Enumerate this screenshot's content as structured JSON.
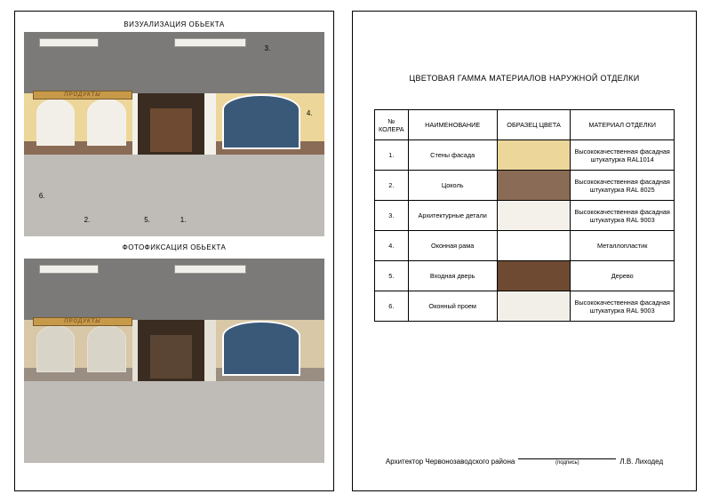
{
  "left": {
    "viz_title": "ВИЗУАЛИЗАЦИЯ ОБЬЕКТА",
    "photo_title": "ФОТОФИКСАЦИЯ ОБЬЕКТА",
    "sign_text": "ПРОДУКТЫ",
    "callouts": [
      "1.",
      "2.",
      "3.",
      "4.",
      "5.",
      "6."
    ],
    "viz_colors": {
      "facade": "#ecd699",
      "plinth": "#8a6b55",
      "details": "#f4f1eb",
      "window_frame": "#ffffff",
      "door": "#6e4a33",
      "opening": "#f2efe9",
      "sign_bg": "#c79a4a",
      "sign_text": "#6b3f1a"
    },
    "photo_colors": {
      "facade": "#d8c8a8",
      "plinth": "#9a8e82",
      "details": "#e6e1d6",
      "door": "#5a4434",
      "opening": "#d9d4c8"
    }
  },
  "right": {
    "title": "ЦВЕТОВАЯ ГАММА МАТЕРИАЛОВ НАРУЖНОЙ ОТДЕЛКИ",
    "headers": {
      "num": "№ КОЛЕРА",
      "name": "НАИМЕНОВАНИЕ",
      "swatch": "ОБРАЗЕЦ ЦВЕТА",
      "material": "МАТЕРИАЛ ОТДЕЛКИ"
    },
    "rows": [
      {
        "num": "1.",
        "name": "Стены фасада",
        "color": "#ecd699",
        "material": "Высококачественная фасадная штукатурка RAL1014"
      },
      {
        "num": "2.",
        "name": "Цоколь",
        "color": "#8a6b55",
        "material": "Высококачественная фасадная штукатурка RAL 8025"
      },
      {
        "num": "3.",
        "name": "Архитектурные детали",
        "color": "#f4f1eb",
        "material": "Высококачественная фасадная штукатурка RAL 9003"
      },
      {
        "num": "4.",
        "name": "Оконная рама",
        "color": "#ffffff",
        "material": "Металлопластик"
      },
      {
        "num": "5.",
        "name": "Входная дверь",
        "color": "#6e4a33",
        "material": "Дерево"
      },
      {
        "num": "6.",
        "name": "Оконный проем",
        "color": "#f2efe9",
        "material": "Высококачественная фасадная штукатурка RAL 9003"
      }
    ],
    "signature": {
      "role": "Архитектор Червонозаводского района",
      "sub": "(подпись)",
      "name": "Л.В. Лиходед"
    }
  }
}
